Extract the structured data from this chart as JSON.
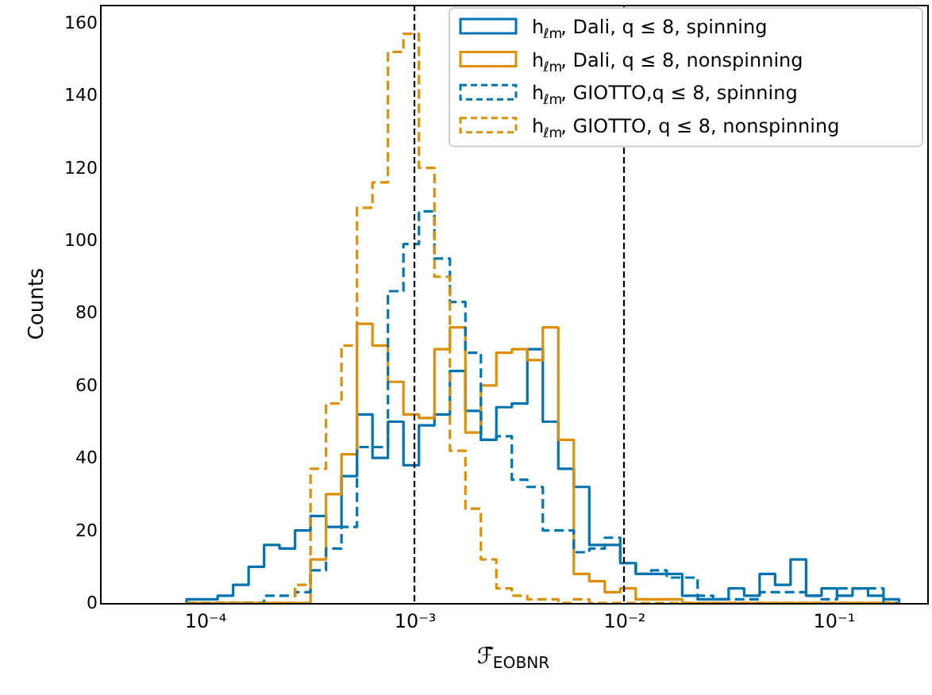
{
  "chart_data": {
    "type": "histogram",
    "xlabel": "ℱ̄$_{EOBNR}$",
    "ylabel": "Counts",
    "log": "x",
    "bins": [
      8.18e-05,
      9.7e-05,
      0.000115,
      0.0001364,
      0.0001617,
      0.0001917,
      0.0002272,
      0.0002694,
      0.0003193,
      0.0003786,
      0.0004487,
      0.000532,
      0.0006307,
      0.0007477,
      0.0008864,
      0.001051,
      0.001246,
      0.001477,
      0.001751,
      0.002076,
      0.00246,
      0.002917,
      0.003458,
      0.0041,
      0.00486,
      0.005762,
      0.006831,
      0.008098,
      0.009598,
      0.01138,
      0.01349,
      0.01599,
      0.01896,
      0.02247,
      0.02664,
      0.03158,
      0.03744,
      0.04439,
      0.05262,
      0.06238,
      0.07396,
      0.08768,
      0.1039,
      0.1232,
      0.1461,
      0.1732,
      0.2053
    ],
    "series": [
      {
        "name": "h$_{ℓm}$, Dali, q ≤ 8, spinning",
        "color": "#0173b2",
        "line_style": "solid",
        "values": [
          1,
          1,
          2,
          5,
          10,
          16,
          15,
          20,
          24,
          21,
          35,
          52,
          40,
          50,
          38,
          49,
          52,
          64,
          53,
          45,
          54,
          55,
          70,
          50,
          37,
          32,
          16,
          16,
          11,
          8,
          8,
          8,
          2,
          1,
          1,
          4,
          2,
          8,
          5,
          12,
          2,
          4,
          2,
          4,
          2,
          1
        ]
      },
      {
        "name": "h$_{ℓm}$, Dali, q ≤ 8, nonspinning",
        "color": "#de8f05",
        "line_style": "solid",
        "values": [
          0,
          0,
          0,
          0,
          0,
          0,
          0,
          0,
          12,
          30,
          41,
          77,
          71,
          61,
          52,
          51,
          70,
          76,
          47,
          60,
          69,
          70,
          67,
          76,
          45,
          8,
          6,
          3,
          4,
          1,
          1,
          1,
          0,
          0,
          0,
          0,
          0,
          0,
          0,
          0,
          0,
          0,
          0,
          0,
          0,
          0
        ]
      },
      {
        "name": "h$_{ℓm}$, GIOTTO,q ≤ 8, spinning",
        "color": "#0275b3",
        "line_style": "dashed",
        "values": [
          0,
          0,
          0,
          0,
          0,
          2,
          2,
          3,
          9,
          15,
          21,
          43,
          43,
          86,
          99,
          108,
          95,
          83,
          69,
          45,
          46,
          34,
          32,
          20,
          20,
          14,
          15,
          18,
          11,
          8,
          9,
          7,
          7,
          2,
          1,
          1,
          1,
          3,
          3,
          3,
          2,
          1,
          4,
          4,
          4,
          0
        ]
      },
      {
        "name": "h$_{ℓm}$, GIOTTO, q ≤ 8, nonspinning",
        "color": "#dd9007",
        "line_style": "dashed",
        "values": [
          0,
          0,
          0,
          0,
          0,
          0,
          0,
          5,
          37,
          55,
          71,
          109,
          116,
          152,
          157,
          120,
          90,
          42,
          26,
          12,
          4,
          2,
          1,
          1,
          0,
          1,
          0,
          0,
          0,
          0,
          0,
          0,
          0,
          0,
          0,
          0,
          0,
          0,
          0,
          0,
          0,
          0,
          0,
          0,
          0,
          0
        ]
      }
    ],
    "xlim": [
      3.16e-05,
      0.28
    ],
    "xticks": [
      {
        "value": 0.0001,
        "label": "10⁻⁴"
      },
      {
        "value": 0.001,
        "label": "10⁻³"
      },
      {
        "value": 0.01,
        "label": "10⁻²"
      },
      {
        "value": 0.1,
        "label": "10⁻¹"
      }
    ],
    "ylim": [
      0,
      165
    ],
    "yticks": [
      0,
      20,
      40,
      60,
      80,
      100,
      120,
      140,
      160
    ],
    "ref_lines": [
      {
        "axis": "x",
        "value": 0.001,
        "color": "#000000",
        "line_style": "dashed"
      },
      {
        "axis": "x",
        "value": 0.01,
        "color": "#000000",
        "line_style": "dashed"
      }
    ],
    "grid": false,
    "legend": "top right"
  }
}
